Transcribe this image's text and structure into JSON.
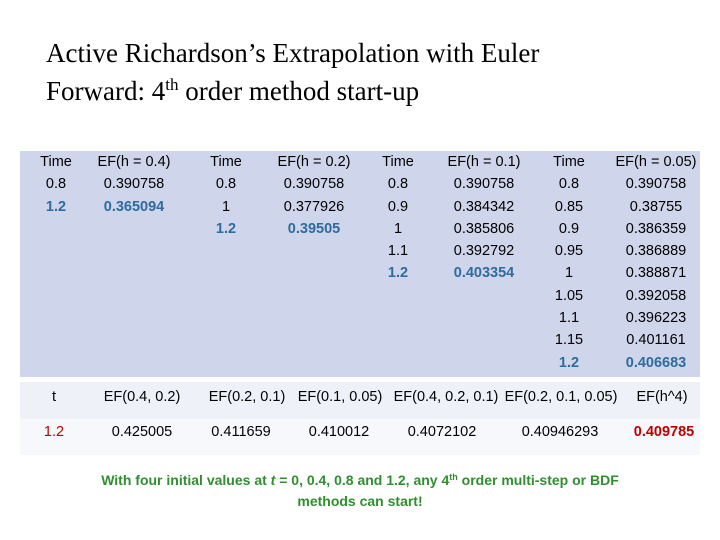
{
  "title": {
    "line1": "Active Richardson’s Extrapolation with Euler",
    "line2_pre": "Forward: 4",
    "line2_sup": "th",
    "line2_post": " order method start-up"
  },
  "columns": [
    {
      "header": "Time",
      "values": [
        "0.8",
        "1.2"
      ],
      "highlight_last": true
    },
    {
      "header": "EF(h = 0.4)",
      "values": [
        "0.390758",
        "0.365094"
      ],
      "highlight_last": true
    },
    {
      "header": "Time",
      "values": [
        "0.8",
        "1",
        "1.2"
      ],
      "highlight_last": true
    },
    {
      "header": "EF(h = 0.2)",
      "values": [
        "0.390758",
        "0.377926",
        "0.39505"
      ],
      "highlight_last": true
    },
    {
      "header": "Time",
      "values": [
        "0.8",
        "0.9",
        "1",
        "1.1",
        "1.2"
      ],
      "highlight_last": true
    },
    {
      "header": "EF(h = 0.1)",
      "values": [
        "0.390758",
        "0.384342",
        "0.385806",
        "0.392792",
        "0.403354"
      ],
      "highlight_last": true
    },
    {
      "header": "Time",
      "values": [
        "0.8",
        "0.85",
        "0.9",
        "0.95",
        "1",
        "1.05",
        "1.1",
        "1.15",
        "1.2"
      ],
      "highlight_last": true
    },
    {
      "header": "EF(h = 0.05)",
      "values": [
        "0.390758",
        "0.38755",
        "0.386359",
        "0.386889",
        "0.388871",
        "0.392058",
        "0.396223",
        "0.401161",
        "0.406683"
      ],
      "highlight_last": true
    }
  ],
  "extrap_headers": [
    "t",
    "EF(0.4, 0.2)",
    "EF(0.2, 0.1)",
    "EF(0.1, 0.05)",
    "EF(0.4, 0.2, 0.1)",
    "EF(0.2, 0.1, 0.05)",
    "EF(h^4)"
  ],
  "extrap_values": [
    "1.2",
    "0.425005",
    "0.411659",
    "0.410012",
    "0.4072102",
    "0.40946293",
    "0.409785"
  ],
  "footnote": {
    "pre_t": "With four initial values at ",
    "t": "t",
    "post_t": " = 0, 0.4, 0.8 and 1.2, any 4",
    "sup": "th",
    "post_sup": " order multi-step or BDF",
    "line2": "methods can start!"
  },
  "colors": {
    "highlight": "#2e6b9f",
    "red": "#c00000",
    "footnote": "#2f8f2f",
    "table_bg": "#cfd5ea"
  }
}
